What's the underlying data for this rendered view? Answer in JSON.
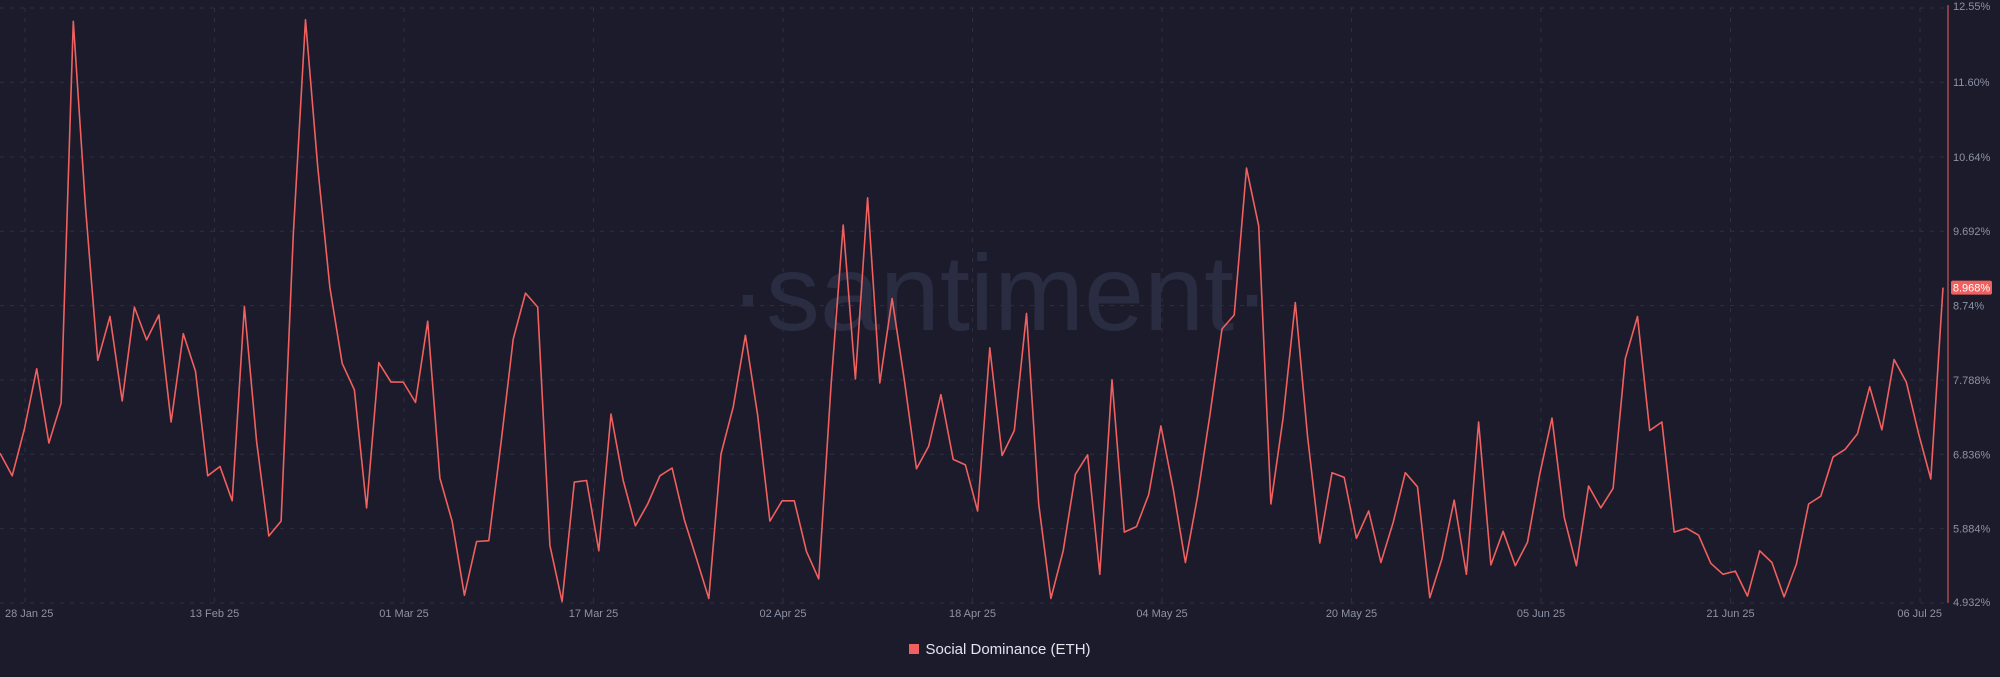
{
  "chart_data": {
    "type": "line",
    "series": [
      {
        "name": "Social Dominance (ETH)",
        "color": "#f0605f",
        "values": [
          6.85,
          6.56,
          7.16,
          7.93,
          6.98,
          7.49,
          12.38,
          10.0,
          8.04,
          8.6,
          7.52,
          8.72,
          8.3,
          8.62,
          7.25,
          8.38,
          7.9,
          6.56,
          6.68,
          6.24,
          8.73,
          7.0,
          5.79,
          5.98,
          9.65,
          12.4,
          10.52,
          8.97,
          8.0,
          7.66,
          6.15,
          8.01,
          7.76,
          7.76,
          7.5,
          8.54,
          6.53,
          5.98,
          5.03,
          5.72,
          5.73,
          6.98,
          8.31,
          8.9,
          8.72,
          5.67,
          4.95,
          6.48,
          6.5,
          5.6,
          7.35,
          6.5,
          5.92,
          6.2,
          6.56,
          6.66,
          6.0,
          5.5,
          4.99,
          6.84,
          7.44,
          8.36,
          7.34,
          5.98,
          6.24,
          6.24,
          5.59,
          5.24,
          7.71,
          9.77,
          7.8,
          10.12,
          7.75,
          8.83,
          7.79,
          6.65,
          6.94,
          7.6,
          6.77,
          6.7,
          6.11,
          8.2,
          6.82,
          7.14,
          8.64,
          6.2,
          4.99,
          5.6,
          6.58,
          6.83,
          5.3,
          7.79,
          5.84,
          5.91,
          6.32,
          7.2,
          6.4,
          5.45,
          6.3,
          7.33,
          8.44,
          8.62,
          10.5,
          9.76,
          6.2,
          7.3,
          8.78,
          7.06,
          5.7,
          6.6,
          6.54,
          5.76,
          6.11,
          5.45,
          5.96,
          6.6,
          6.42,
          5.0,
          5.5,
          6.25,
          5.3,
          7.25,
          5.42,
          5.85,
          5.41,
          5.71,
          6.58,
          7.3,
          6.03,
          5.41,
          6.43,
          6.15,
          6.4,
          8.06,
          8.6,
          7.14,
          7.25,
          5.84,
          5.89,
          5.8,
          5.44,
          5.3,
          5.34,
          5.02,
          5.6,
          5.45,
          5.01,
          5.43,
          6.2,
          6.3,
          6.8,
          6.9,
          7.1,
          7.7,
          7.15,
          8.05,
          7.76,
          7.1,
          6.52,
          8.97
        ]
      }
    ],
    "x_ticks": [
      "28 Jan 25",
      "13 Feb 25",
      "01 Mar 25",
      "17 Mar 25",
      "02 Apr 25",
      "18 Apr 25",
      "04 May 25",
      "20 May 25",
      "05 Jun 25",
      "21 Jun 25",
      "06 Jul 25"
    ],
    "x_tick_positions": [
      0.0,
      0.1,
      0.2,
      0.3,
      0.4,
      0.5,
      0.6,
      0.7,
      0.8,
      0.9,
      1.0
    ],
    "y_ticks": [
      "12.55%",
      "11.60%",
      "10.64%",
      "9.692%",
      "8.74%",
      "7.788%",
      "6.836%",
      "5.884%",
      "4.932%"
    ],
    "y_tick_values": [
      12.55,
      11.6,
      10.64,
      9.692,
      8.74,
      7.788,
      6.836,
      5.884,
      4.932
    ],
    "ylim": [
      4.932,
      12.55
    ],
    "last_value_label": "8.968%",
    "grid": true,
    "legend_position": "bottom-center",
    "watermark": "·santiment·",
    "colors": {
      "background": "#1b1b2b",
      "grid": "#2c2f44",
      "axis_text": "#8e92a6"
    }
  }
}
